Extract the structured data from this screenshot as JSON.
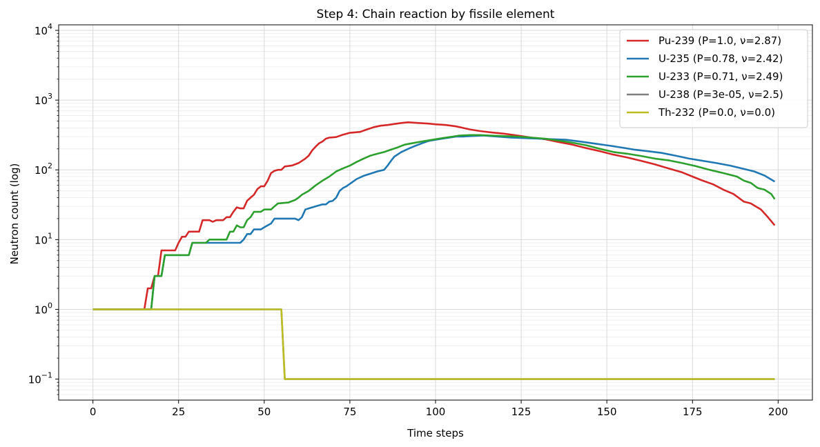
{
  "chart_data": {
    "type": "line",
    "title": "Step 4: Chain reaction by fissile element",
    "xlabel": "Time steps",
    "ylabel": "Neutron count (log)",
    "xlim": [
      -10,
      210
    ],
    "ylim": [
      0.05,
      12000
    ],
    "yscale": "log",
    "xticks": [
      0,
      25,
      50,
      75,
      100,
      125,
      150,
      175,
      200
    ],
    "yticks": [
      {
        "value": 0.1,
        "base": "10",
        "exp": "−1"
      },
      {
        "value": 1,
        "base": "10",
        "exp": "0"
      },
      {
        "value": 10,
        "base": "10",
        "exp": "1"
      },
      {
        "value": 100,
        "base": "10",
        "exp": "2"
      },
      {
        "value": 1000,
        "base": "10",
        "exp": "3"
      },
      {
        "value": 10000,
        "base": "10",
        "exp": "4"
      }
    ],
    "grid": true,
    "legend_position": "top-right",
    "series": [
      {
        "name": "Pu-239 (P=1.0, ν=2.87)",
        "color": "#d62728",
        "points": [
          [
            0,
            1
          ],
          [
            15,
            1
          ],
          [
            16,
            2
          ],
          [
            17,
            2
          ],
          [
            18,
            3
          ],
          [
            19,
            3
          ],
          [
            20,
            7
          ],
          [
            21,
            7
          ],
          [
            24,
            7
          ],
          [
            25,
            9
          ],
          [
            26,
            11
          ],
          [
            27,
            11
          ],
          [
            28,
            13
          ],
          [
            29,
            13
          ],
          [
            31,
            13
          ],
          [
            32,
            19
          ],
          [
            34,
            19
          ],
          [
            35,
            18
          ],
          [
            36,
            19
          ],
          [
            38,
            19
          ],
          [
            39,
            21
          ],
          [
            40,
            21
          ],
          [
            41,
            25
          ],
          [
            42,
            29
          ],
          [
            43,
            28
          ],
          [
            44,
            28
          ],
          [
            45,
            36
          ],
          [
            46,
            40
          ],
          [
            47,
            44
          ],
          [
            48,
            53
          ],
          [
            49,
            58
          ],
          [
            50,
            58
          ],
          [
            51,
            70
          ],
          [
            52,
            90
          ],
          [
            53,
            97
          ],
          [
            54,
            100
          ],
          [
            55,
            100
          ],
          [
            56,
            112
          ],
          [
            58,
            115
          ],
          [
            60,
            125
          ],
          [
            62,
            145
          ],
          [
            63,
            160
          ],
          [
            64,
            190
          ],
          [
            65,
            215
          ],
          [
            66,
            240
          ],
          [
            67,
            255
          ],
          [
            68,
            280
          ],
          [
            69,
            290
          ],
          [
            71,
            295
          ],
          [
            73,
            320
          ],
          [
            75,
            340
          ],
          [
            78,
            350
          ],
          [
            80,
            380
          ],
          [
            82,
            410
          ],
          [
            84,
            430
          ],
          [
            86,
            440
          ],
          [
            88,
            455
          ],
          [
            90,
            470
          ],
          [
            92,
            480
          ],
          [
            95,
            470
          ],
          [
            98,
            460
          ],
          [
            100,
            450
          ],
          [
            103,
            440
          ],
          [
            106,
            420
          ],
          [
            108,
            400
          ],
          [
            110,
            380
          ],
          [
            113,
            360
          ],
          [
            116,
            345
          ],
          [
            120,
            330
          ],
          [
            124,
            310
          ],
          [
            128,
            290
          ],
          [
            132,
            275
          ],
          [
            136,
            250
          ],
          [
            140,
            230
          ],
          [
            144,
            205
          ],
          [
            148,
            185
          ],
          [
            152,
            165
          ],
          [
            156,
            150
          ],
          [
            160,
            135
          ],
          [
            164,
            120
          ],
          [
            168,
            105
          ],
          [
            172,
            92
          ],
          [
            175,
            80
          ],
          [
            178,
            70
          ],
          [
            181,
            62
          ],
          [
            184,
            52
          ],
          [
            187,
            45
          ],
          [
            190,
            35
          ],
          [
            192,
            33
          ],
          [
            195,
            27
          ],
          [
            197,
            21
          ],
          [
            199,
            16
          ]
        ]
      },
      {
        "name": "U-235 (P=0.78, ν=2.42)",
        "color": "#1f77b4",
        "points": [
          [
            0,
            1
          ],
          [
            17,
            1
          ],
          [
            18,
            3
          ],
          [
            20,
            3
          ],
          [
            21,
            6
          ],
          [
            28,
            6
          ],
          [
            29,
            9
          ],
          [
            43,
            9
          ],
          [
            44,
            10
          ],
          [
            45,
            12
          ],
          [
            46,
            12
          ],
          [
            47,
            14
          ],
          [
            49,
            14
          ],
          [
            50,
            15
          ],
          [
            52,
            17
          ],
          [
            53,
            20
          ],
          [
            59,
            20
          ],
          [
            60,
            19
          ],
          [
            61,
            21
          ],
          [
            62,
            27
          ],
          [
            63,
            28
          ],
          [
            65,
            30
          ],
          [
            67,
            32
          ],
          [
            68,
            32
          ],
          [
            69,
            35
          ],
          [
            70,
            36
          ],
          [
            71,
            40
          ],
          [
            72,
            50
          ],
          [
            73,
            55
          ],
          [
            74,
            58
          ],
          [
            75,
            63
          ],
          [
            77,
            74
          ],
          [
            79,
            82
          ],
          [
            81,
            88
          ],
          [
            83,
            95
          ],
          [
            85,
            100
          ],
          [
            86,
            115
          ],
          [
            87,
            135
          ],
          [
            88,
            155
          ],
          [
            90,
            180
          ],
          [
            92,
            200
          ],
          [
            94,
            220
          ],
          [
            96,
            240
          ],
          [
            98,
            260
          ],
          [
            100,
            270
          ],
          [
            102,
            280
          ],
          [
            104,
            290
          ],
          [
            106,
            300
          ],
          [
            108,
            300
          ],
          [
            110,
            305
          ],
          [
            114,
            310
          ],
          [
            118,
            300
          ],
          [
            122,
            290
          ],
          [
            126,
            285
          ],
          [
            130,
            280
          ],
          [
            134,
            275
          ],
          [
            138,
            270
          ],
          [
            142,
            255
          ],
          [
            146,
            240
          ],
          [
            150,
            225
          ],
          [
            154,
            210
          ],
          [
            158,
            195
          ],
          [
            162,
            185
          ],
          [
            166,
            175
          ],
          [
            170,
            160
          ],
          [
            174,
            145
          ],
          [
            178,
            135
          ],
          [
            182,
            125
          ],
          [
            186,
            115
          ],
          [
            190,
            103
          ],
          [
            193,
            95
          ],
          [
            196,
            83
          ],
          [
            199,
            68
          ]
        ]
      },
      {
        "name": "U-233 (P=0.71, ν=2.49)",
        "color": "#2ca02c",
        "points": [
          [
            0,
            1
          ],
          [
            17,
            1
          ],
          [
            18,
            3
          ],
          [
            20,
            3
          ],
          [
            21,
            6
          ],
          [
            28,
            6
          ],
          [
            29,
            9
          ],
          [
            33,
            9
          ],
          [
            34,
            10
          ],
          [
            39,
            10
          ],
          [
            40,
            13
          ],
          [
            41,
            13
          ],
          [
            42,
            16
          ],
          [
            43,
            15
          ],
          [
            44,
            15
          ],
          [
            45,
            19
          ],
          [
            46,
            21
          ],
          [
            47,
            25
          ],
          [
            49,
            25
          ],
          [
            50,
            27
          ],
          [
            52,
            27
          ],
          [
            53,
            30
          ],
          [
            54,
            33
          ],
          [
            57,
            34
          ],
          [
            59,
            37
          ],
          [
            60,
            40
          ],
          [
            61,
            44
          ],
          [
            63,
            50
          ],
          [
            65,
            60
          ],
          [
            67,
            70
          ],
          [
            69,
            80
          ],
          [
            71,
            95
          ],
          [
            73,
            105
          ],
          [
            75,
            115
          ],
          [
            77,
            130
          ],
          [
            79,
            145
          ],
          [
            81,
            160
          ],
          [
            83,
            170
          ],
          [
            85,
            180
          ],
          [
            87,
            195
          ],
          [
            89,
            210
          ],
          [
            91,
            230
          ],
          [
            93,
            240
          ],
          [
            95,
            250
          ],
          [
            97,
            260
          ],
          [
            99,
            270
          ],
          [
            101,
            280
          ],
          [
            103,
            290
          ],
          [
            105,
            300
          ],
          [
            107,
            310
          ],
          [
            110,
            315
          ],
          [
            113,
            315
          ],
          [
            116,
            310
          ],
          [
            120,
            305
          ],
          [
            124,
            300
          ],
          [
            128,
            290
          ],
          [
            132,
            280
          ],
          [
            136,
            262
          ],
          [
            140,
            245
          ],
          [
            144,
            225
          ],
          [
            148,
            200
          ],
          [
            152,
            180
          ],
          [
            156,
            170
          ],
          [
            160,
            158
          ],
          [
            164,
            145
          ],
          [
            168,
            137
          ],
          [
            172,
            125
          ],
          [
            176,
            113
          ],
          [
            180,
            100
          ],
          [
            184,
            90
          ],
          [
            188,
            80
          ],
          [
            190,
            70
          ],
          [
            192,
            65
          ],
          [
            194,
            55
          ],
          [
            196,
            52
          ],
          [
            198,
            45
          ],
          [
            199,
            38
          ]
        ]
      },
      {
        "name": "U-238 (P=3e-05, ν=2.5)",
        "color": "#7f7f7f",
        "points": [
          [
            0,
            1
          ],
          [
            55,
            1
          ],
          [
            56,
            0.1
          ],
          [
            199,
            0.1
          ]
        ]
      },
      {
        "name": "Th-232 (P=0.0, ν=0.0)",
        "color": "#bcbd22",
        "points": [
          [
            0,
            1
          ],
          [
            55,
            1
          ],
          [
            56,
            0.1
          ],
          [
            199,
            0.1
          ]
        ]
      }
    ]
  }
}
